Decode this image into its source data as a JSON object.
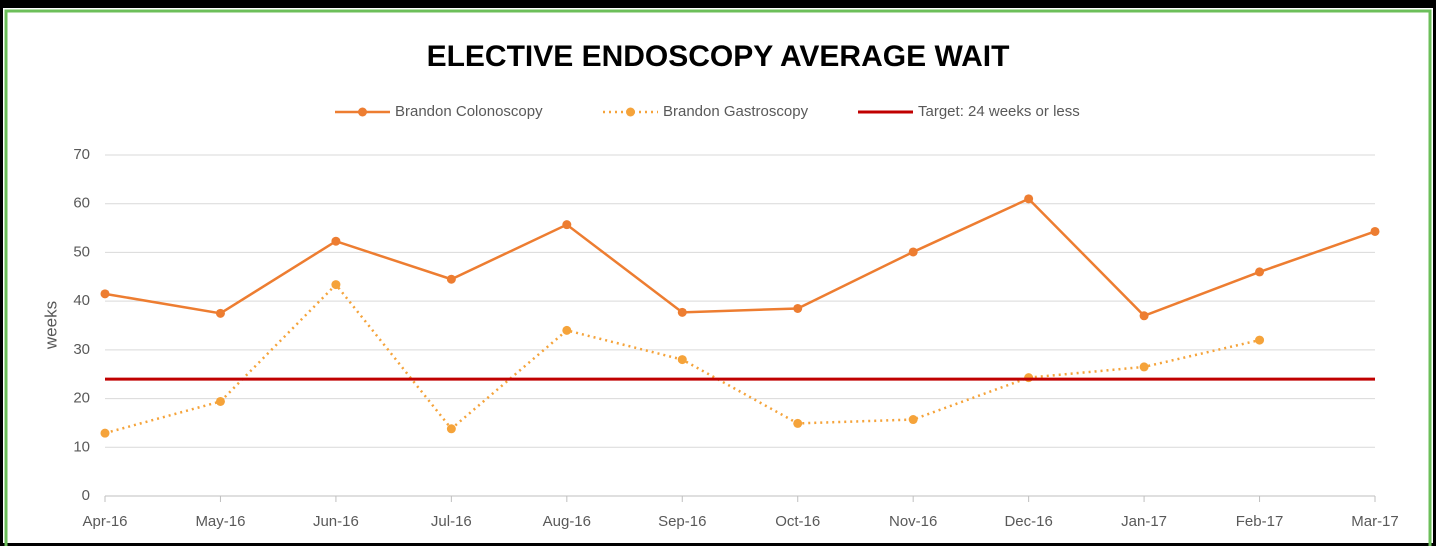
{
  "chart_data": {
    "type": "line",
    "title": "ELECTIVE ENDOSCOPY AVERAGE WAIT",
    "ylabel": "weeks",
    "categories": [
      "Apr-16",
      "May-16",
      "Jun-16",
      "Jul-16",
      "Aug-16",
      "Sep-16",
      "Oct-16",
      "Nov-16",
      "Dec-16",
      "Jan-17",
      "Feb-17",
      "Mar-17"
    ],
    "series": [
      {
        "name": "Brandon Colonoscopy",
        "color": "#ed7d31",
        "dash": "solid",
        "marker": true,
        "values": [
          41.5,
          37.5,
          52.3,
          44.5,
          55.7,
          37.7,
          38.5,
          50.1,
          61,
          37,
          46,
          54.3
        ]
      },
      {
        "name": "Brandon Gastroscopy",
        "color": "#f5a33a",
        "dash": "dotted",
        "marker": true,
        "values": [
          12.9,
          19.4,
          43.4,
          13.8,
          34,
          28,
          14.9,
          15.7,
          24.3,
          26.5,
          32,
          null
        ]
      },
      {
        "name": "Target: 24 weeks or less",
        "color": "#c00000",
        "dash": "solid",
        "marker": false,
        "values": [
          24,
          24,
          24,
          24,
          24,
          24,
          24,
          24,
          24,
          24,
          24,
          24
        ]
      }
    ],
    "ylim": [
      0,
      70
    ],
    "yticks": [
      0,
      10,
      20,
      30,
      40,
      50,
      60,
      70
    ],
    "grid": true,
    "legend": "top"
  }
}
